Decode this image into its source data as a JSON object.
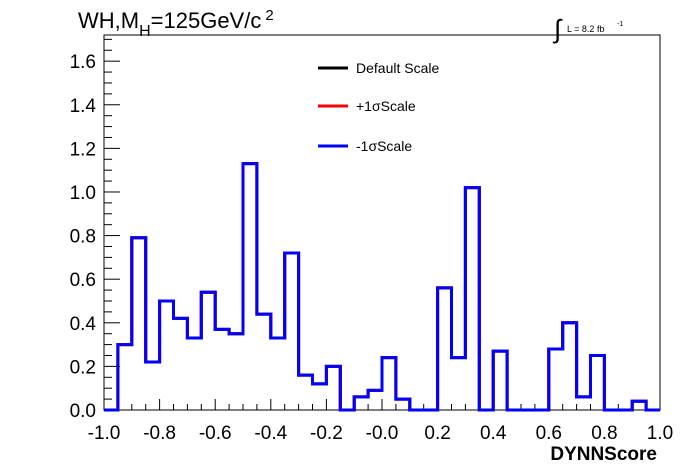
{
  "header": {
    "title_main": "WH,M",
    "title_sub": "H",
    "title_rest": "=125GeV/c",
    "title_sup": "2",
    "lumi_integral": "∫",
    "lumi_text": "L = 8.2 fb",
    "lumi_sup": "-1"
  },
  "chart_data": {
    "type": "line",
    "xlabel": "DYNNScore",
    "ylabel": "",
    "xlim": [
      -1.0,
      1.0
    ],
    "ylim": [
      0.0,
      1.72
    ],
    "x_ticks": [
      "-1.0",
      "-0.8",
      "-0.6",
      "-0.4",
      "-0.2",
      "-0.0",
      "0.2",
      "0.4",
      "0.6",
      "0.8",
      "1.0"
    ],
    "y_ticks": [
      "0.0",
      "0.2",
      "0.4",
      "0.6",
      "0.8",
      "1.0",
      "1.2",
      "1.4",
      "1.6"
    ],
    "bin_edges_start": -1.0,
    "bin_width": 0.05,
    "legend_position": "top-center",
    "series": [
      {
        "name": "Default Scale",
        "color": "#000000",
        "values": [
          0.0,
          0.3,
          0.79,
          0.22,
          0.5,
          0.42,
          0.33,
          0.54,
          0.37,
          0.35,
          1.13,
          0.44,
          0.33,
          0.72,
          0.16,
          0.12,
          0.2,
          0.0,
          0.06,
          0.09,
          0.24,
          0.05,
          0.0,
          0.0,
          0.56,
          0.24,
          1.02,
          0.0,
          0.27,
          0.0,
          0.0,
          0.0,
          0.28,
          0.4,
          0.06,
          0.25,
          0.0,
          0.0,
          0.04,
          0.0
        ]
      },
      {
        "name": "+1σScale",
        "color": "#ff0000",
        "values": [
          0.0,
          0.3,
          0.79,
          0.22,
          0.5,
          0.42,
          0.33,
          0.54,
          0.37,
          0.35,
          1.13,
          0.44,
          0.33,
          0.72,
          0.16,
          0.12,
          0.2,
          0.0,
          0.06,
          0.09,
          0.24,
          0.05,
          0.0,
          0.0,
          0.56,
          0.24,
          1.02,
          0.0,
          0.27,
          0.0,
          0.0,
          0.0,
          0.28,
          0.4,
          0.06,
          0.25,
          0.0,
          0.0,
          0.04,
          0.0
        ]
      },
      {
        "name": "-1σScale",
        "color": "#0000ff",
        "values": [
          0.0,
          0.3,
          0.79,
          0.22,
          0.5,
          0.42,
          0.33,
          0.54,
          0.37,
          0.35,
          1.13,
          0.44,
          0.33,
          0.72,
          0.16,
          0.12,
          0.2,
          0.0,
          0.06,
          0.09,
          0.24,
          0.05,
          0.0,
          0.0,
          0.56,
          0.24,
          1.02,
          0.0,
          0.27,
          0.0,
          0.0,
          0.0,
          0.28,
          0.4,
          0.06,
          0.25,
          0.0,
          0.0,
          0.04,
          0.0
        ]
      }
    ]
  }
}
